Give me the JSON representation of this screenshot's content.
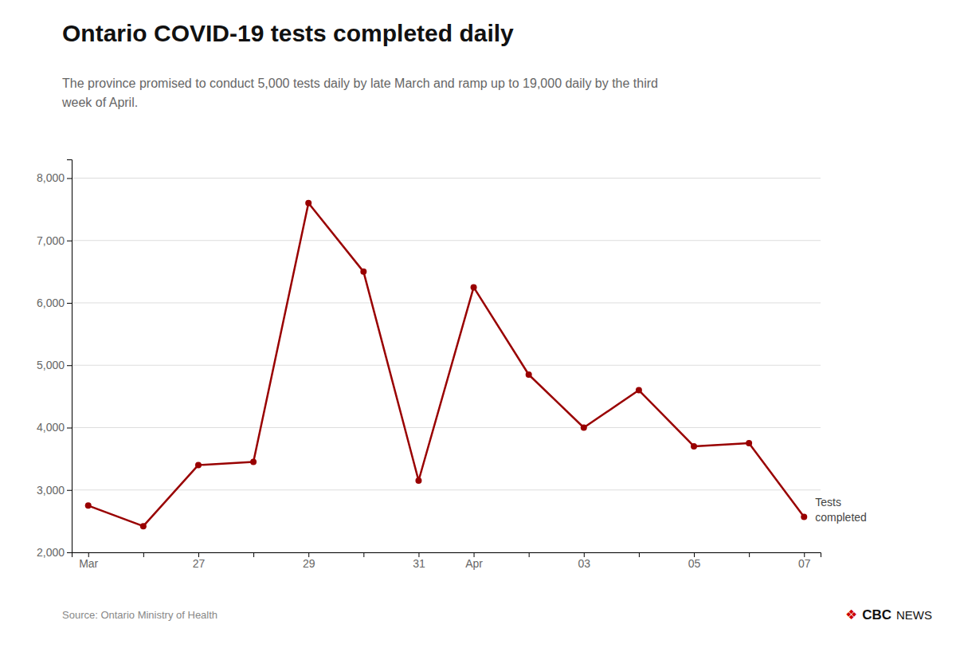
{
  "chart_data": {
    "type": "line",
    "title": "Ontario COVID-19 tests completed daily",
    "subtitle": "The province promised to conduct 5,000 tests daily by late March and ramp up to 19,000 daily by the third\nweek of April.",
    "source": "Source: Ontario Ministry of Health",
    "logo": [
      "❖",
      "CBC",
      "NEWS"
    ],
    "annotation": "Tests\ncompleted",
    "categories": [
      "Mar",
      null,
      "27",
      null,
      "29",
      null,
      "31",
      "Apr",
      null,
      "03",
      null,
      "05",
      null,
      "07"
    ],
    "values": [
      2750,
      2420,
      3400,
      3450,
      7600,
      6500,
      3150,
      6250,
      4850,
      4000,
      4600,
      3700,
      3750,
      2568
    ],
    "color": "#990000",
    "marker": "circle",
    "ylim": [
      2000,
      8300
    ],
    "yticks": [
      {
        "value": 2000,
        "label": "2,000"
      },
      {
        "value": 3000,
        "label": "3,000"
      },
      {
        "value": 4000,
        "label": "4,000"
      },
      {
        "value": 5000,
        "label": "5,000"
      },
      {
        "value": 6000,
        "label": "6,000"
      },
      {
        "value": 7000,
        "label": "7,000"
      },
      {
        "value": 8000,
        "label": "8,000"
      }
    ],
    "grid": true
  }
}
